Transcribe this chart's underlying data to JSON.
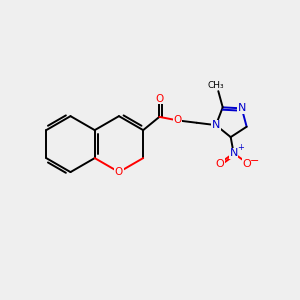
{
  "bg_color": "#efefef",
  "bond_color": "#000000",
  "o_color": "#ff0000",
  "n_color": "#0000cc",
  "line_width": 1.4,
  "figsize": [
    3.0,
    3.0
  ],
  "dpi": 100,
  "xlim": [
    0,
    10
  ],
  "ylim": [
    0,
    10
  ]
}
